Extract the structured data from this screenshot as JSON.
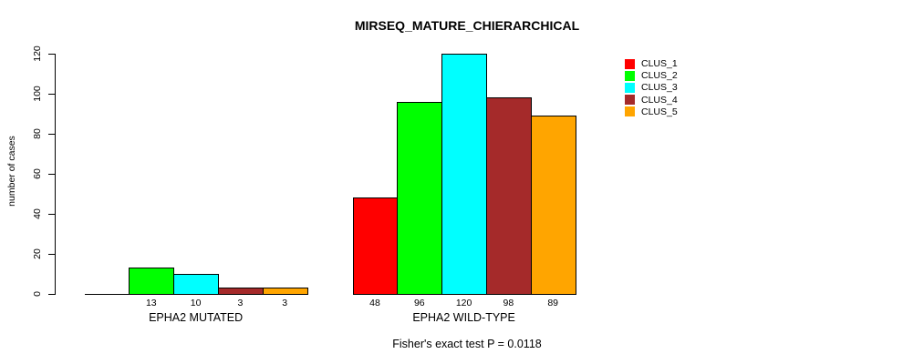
{
  "chart_data": {
    "type": "bar",
    "title": "MIRSEQ_MATURE_CHIERARCHICAL",
    "xlabel": "",
    "ylabel": "number of cases",
    "ylim": [
      0,
      120
    ],
    "yticks": [
      0,
      20,
      40,
      60,
      80,
      100,
      120
    ],
    "grid": false,
    "legend_position": "right",
    "series": [
      {
        "name": "CLUS_1",
        "color": "#FF0000"
      },
      {
        "name": "CLUS_2",
        "color": "#00FF00"
      },
      {
        "name": "CLUS_3",
        "color": "#00FFFF"
      },
      {
        "name": "CLUS_4",
        "color": "#A52A2A"
      },
      {
        "name": "CLUS_5",
        "color": "#FFA500"
      }
    ],
    "groups": [
      {
        "label": "EPHA2 MUTATED",
        "values": [
          0,
          13,
          10,
          3,
          3
        ]
      },
      {
        "label": "EPHA2 WILD-TYPE",
        "values": [
          48,
          96,
          120,
          98,
          89
        ]
      }
    ],
    "footer": "Fisher's exact test P = 0.0118"
  }
}
